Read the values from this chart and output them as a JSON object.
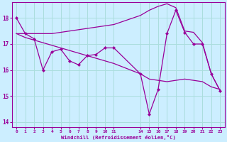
{
  "background_color": "#cceeff",
  "line_color": "#990099",
  "grid_color": "#aadddd",
  "xlabel": "Windchill (Refroidissement éolien,°C)",
  "xlim": [
    -0.5,
    23.5
  ],
  "ylim": [
    13.8,
    18.6
  ],
  "yticks": [
    14,
    15,
    16,
    17,
    18
  ],
  "xtick_vals": [
    0,
    1,
    2,
    3,
    4,
    5,
    6,
    7,
    8,
    9,
    10,
    11,
    14,
    15,
    16,
    17,
    18,
    19,
    20,
    21,
    22,
    23
  ],
  "hours": [
    0,
    1,
    2,
    3,
    4,
    5,
    6,
    7,
    8,
    9,
    10,
    11,
    14,
    15,
    16,
    17,
    18,
    19,
    20,
    21,
    22,
    23
  ],
  "line1_y": [
    18.0,
    17.4,
    17.2,
    16.0,
    16.7,
    16.8,
    16.35,
    16.2,
    16.55,
    16.6,
    16.85,
    16.85,
    15.85,
    14.3,
    15.25,
    17.4,
    18.3,
    17.45,
    17.0,
    17.0,
    15.85,
    15.2
  ],
  "line2_y": [
    17.4,
    17.25,
    17.15,
    17.05,
    16.95,
    16.85,
    16.75,
    16.65,
    16.55,
    16.45,
    16.35,
    16.25,
    15.85,
    15.65,
    15.6,
    15.55,
    15.6,
    15.65,
    15.6,
    15.55,
    15.35,
    15.25
  ],
  "line3_y": [
    17.4,
    17.4,
    17.4,
    17.4,
    17.4,
    17.45,
    17.5,
    17.55,
    17.6,
    17.65,
    17.7,
    17.75,
    18.1,
    18.3,
    18.45,
    18.55,
    18.4,
    17.5,
    17.45,
    17.05,
    15.85,
    15.2
  ]
}
